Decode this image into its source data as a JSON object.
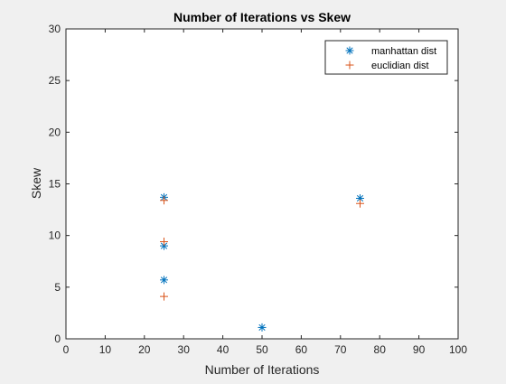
{
  "chart_data": {
    "type": "scatter",
    "title": "Number of Iterations vs Skew",
    "xlabel": "Number of Iterations",
    "ylabel": "Skew",
    "xlim": [
      0,
      100
    ],
    "ylim": [
      0,
      30
    ],
    "xticks": [
      0,
      10,
      20,
      30,
      40,
      50,
      60,
      70,
      80,
      90,
      100
    ],
    "yticks": [
      0,
      5,
      10,
      15,
      20,
      25,
      30
    ],
    "grid": false,
    "legend_position": "top-right",
    "series": [
      {
        "name": "manhattan dist",
        "marker": "asterisk",
        "color": "#0072BD",
        "points": [
          {
            "x": 25,
            "y": 13.7
          },
          {
            "x": 25,
            "y": 9.0
          },
          {
            "x": 25,
            "y": 5.7
          },
          {
            "x": 50,
            "y": 1.1
          },
          {
            "x": 75,
            "y": 13.6
          }
        ]
      },
      {
        "name": "euclidian dist",
        "marker": "plus",
        "color": "#D95319",
        "points": [
          {
            "x": 25,
            "y": 13.4
          },
          {
            "x": 25,
            "y": 9.4
          },
          {
            "x": 25,
            "y": 4.1
          },
          {
            "x": 75,
            "y": 13.1
          }
        ]
      }
    ]
  }
}
